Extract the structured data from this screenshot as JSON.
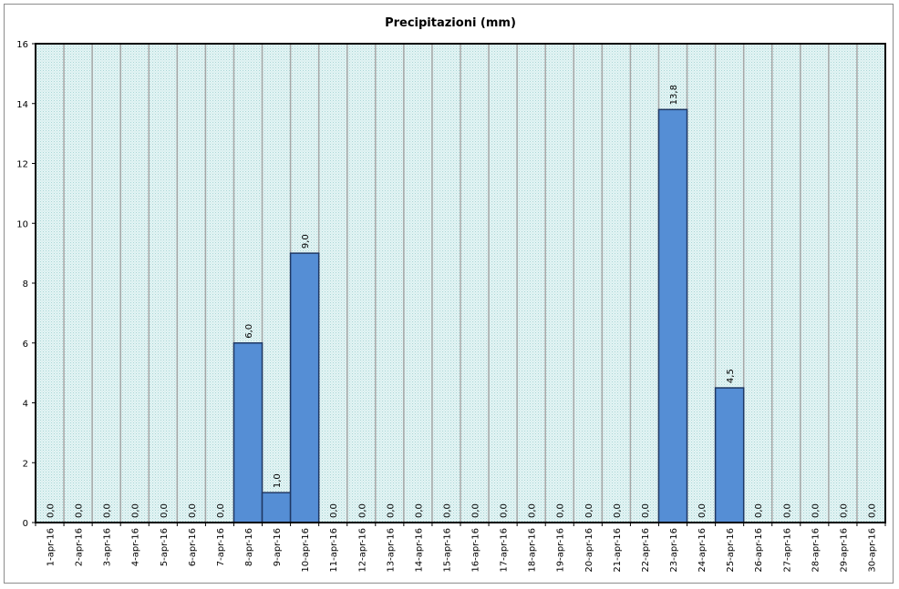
{
  "chart_data": {
    "type": "bar",
    "title": "Precipitazioni (mm)",
    "xlabel": "",
    "ylabel": "",
    "ylim": [
      0,
      16
    ],
    "yticks": [
      0,
      2,
      4,
      6,
      8,
      10,
      12,
      14,
      16
    ],
    "categories": [
      "1-apr-16",
      "2-apr-16",
      "3-apr-16",
      "4-apr-16",
      "5-apr-16",
      "6-apr-16",
      "7-apr-16",
      "8-apr-16",
      "9-apr-16",
      "10-apr-16",
      "11-apr-16",
      "12-apr-16",
      "13-apr-16",
      "14-apr-16",
      "15-apr-16",
      "16-apr-16",
      "17-apr-16",
      "18-apr-16",
      "19-apr-16",
      "20-apr-16",
      "21-apr-16",
      "22-apr-16",
      "23-apr-16",
      "24-apr-16",
      "25-apr-16",
      "26-apr-16",
      "27-apr-16",
      "28-apr-16",
      "29-apr-16",
      "30-apr-16"
    ],
    "values": [
      0,
      0,
      0,
      0,
      0,
      0,
      0,
      6,
      1,
      9,
      0,
      0,
      0,
      0,
      0,
      0,
      0,
      0,
      0,
      0,
      0,
      0,
      13.8,
      0,
      4.5,
      0,
      0,
      0,
      0,
      0
    ],
    "value_labels": [
      "0,0",
      "0,0",
      "0,0",
      "0,0",
      "0,0",
      "0,0",
      "0,0",
      "6,0",
      "1,0",
      "9,0",
      "0,0",
      "0,0",
      "0,0",
      "0,0",
      "0,0",
      "0,0",
      "0,0",
      "0,0",
      "0,0",
      "0,0",
      "0,0",
      "0,0",
      "13,8",
      "0,0",
      "4,5",
      "0,0",
      "0,0",
      "0,0",
      "0,0",
      "0,0"
    ],
    "grid": true,
    "legend": "none",
    "colors": {
      "bar_fill": "#558ed5",
      "bar_stroke": "#1f3864",
      "plot_bg": "#d7efef",
      "gridline": "#a6a6a6"
    }
  }
}
